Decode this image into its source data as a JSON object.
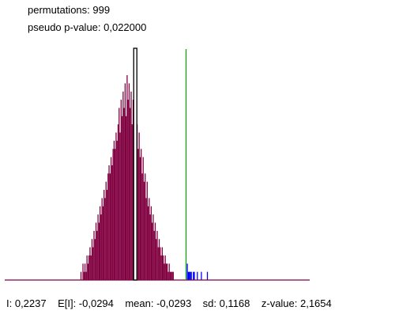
{
  "header": {
    "permutations_text": "permutations: 999",
    "pvalue_text": "pseudo p-value: 0,022000"
  },
  "footer": {
    "I_text": "I: 0,2237",
    "EI_text": "E[I]: -0,0294",
    "mean_text": "mean: -0,0293",
    "sd_text": "sd: 0,1168",
    "z_text": "z-value: 2,1654"
  },
  "colors": {
    "hist_fill": "#800040",
    "tail_fill": "#0000ff",
    "observed_line": "#00a000",
    "expected_line": "#000000",
    "baseline": "#800040"
  },
  "chart_data": {
    "type": "histogram",
    "title": "",
    "xlabel": "",
    "ylabel": "",
    "observed_I": 0.2237,
    "expected_I": -0.0294,
    "mean": -0.0293,
    "sd": 0.1168,
    "permutations": 999,
    "x_range": [
      -0.68,
      0.84
    ],
    "bin_width": 0.0044,
    "peak_count": 25,
    "tail_threshold": 0.2237,
    "bins": [
      {
        "x": -0.3,
        "count": 1
      },
      {
        "x": -0.295,
        "count": 0
      },
      {
        "x": -0.29,
        "count": 2
      },
      {
        "x": -0.285,
        "count": 1
      },
      {
        "x": -0.28,
        "count": 2
      },
      {
        "x": -0.275,
        "count": 1
      },
      {
        "x": -0.27,
        "count": 3
      },
      {
        "x": -0.265,
        "count": 2
      },
      {
        "x": -0.26,
        "count": 3
      },
      {
        "x": -0.255,
        "count": 4
      },
      {
        "x": -0.25,
        "count": 3
      },
      {
        "x": -0.245,
        "count": 5
      },
      {
        "x": -0.24,
        "count": 4
      },
      {
        "x": -0.235,
        "count": 6
      },
      {
        "x": -0.23,
        "count": 5
      },
      {
        "x": -0.225,
        "count": 7
      },
      {
        "x": -0.22,
        "count": 6
      },
      {
        "x": -0.215,
        "count": 8
      },
      {
        "x": -0.21,
        "count": 7
      },
      {
        "x": -0.205,
        "count": 9
      },
      {
        "x": -0.2,
        "count": 8
      },
      {
        "x": -0.195,
        "count": 10
      },
      {
        "x": -0.19,
        "count": 9
      },
      {
        "x": -0.185,
        "count": 11
      },
      {
        "x": -0.18,
        "count": 10
      },
      {
        "x": -0.175,
        "count": 12
      },
      {
        "x": -0.17,
        "count": 11
      },
      {
        "x": -0.165,
        "count": 13
      },
      {
        "x": -0.16,
        "count": 14
      },
      {
        "x": -0.155,
        "count": 13
      },
      {
        "x": -0.15,
        "count": 15
      },
      {
        "x": -0.145,
        "count": 14
      },
      {
        "x": -0.14,
        "count": 16
      },
      {
        "x": -0.135,
        "count": 17
      },
      {
        "x": -0.13,
        "count": 16
      },
      {
        "x": -0.125,
        "count": 18
      },
      {
        "x": -0.12,
        "count": 17
      },
      {
        "x": -0.115,
        "count": 19
      },
      {
        "x": -0.11,
        "count": 21
      },
      {
        "x": -0.105,
        "count": 18
      },
      {
        "x": -0.1,
        "count": 22
      },
      {
        "x": -0.095,
        "count": 20
      },
      {
        "x": -0.09,
        "count": 23
      },
      {
        "x": -0.085,
        "count": 21
      },
      {
        "x": -0.08,
        "count": 24
      },
      {
        "x": -0.075,
        "count": 20
      },
      {
        "x": -0.07,
        "count": 25
      },
      {
        "x": -0.065,
        "count": 22
      },
      {
        "x": -0.06,
        "count": 24
      },
      {
        "x": -0.055,
        "count": 21
      },
      {
        "x": -0.05,
        "count": 23
      },
      {
        "x": -0.045,
        "count": 19
      },
      {
        "x": -0.04,
        "count": 22
      },
      {
        "x": -0.035,
        "count": 18
      },
      {
        "x": -0.03,
        "count": 21
      },
      {
        "x": -0.025,
        "count": 17
      },
      {
        "x": -0.02,
        "count": 19
      },
      {
        "x": -0.015,
        "count": 16
      },
      {
        "x": -0.01,
        "count": 18
      },
      {
        "x": -0.005,
        "count": 15
      },
      {
        "x": 0.0,
        "count": 16
      },
      {
        "x": 0.005,
        "count": 13
      },
      {
        "x": 0.01,
        "count": 15
      },
      {
        "x": 0.015,
        "count": 12
      },
      {
        "x": 0.02,
        "count": 13
      },
      {
        "x": 0.025,
        "count": 10
      },
      {
        "x": 0.03,
        "count": 12
      },
      {
        "x": 0.035,
        "count": 9
      },
      {
        "x": 0.04,
        "count": 10
      },
      {
        "x": 0.045,
        "count": 8
      },
      {
        "x": 0.05,
        "count": 9
      },
      {
        "x": 0.055,
        "count": 7
      },
      {
        "x": 0.06,
        "count": 8
      },
      {
        "x": 0.065,
        "count": 6
      },
      {
        "x": 0.07,
        "count": 7
      },
      {
        "x": 0.075,
        "count": 5
      },
      {
        "x": 0.08,
        "count": 6
      },
      {
        "x": 0.085,
        "count": 4
      },
      {
        "x": 0.09,
        "count": 5
      },
      {
        "x": 0.095,
        "count": 4
      },
      {
        "x": 0.1,
        "count": 3
      },
      {
        "x": 0.105,
        "count": 4
      },
      {
        "x": 0.11,
        "count": 3
      },
      {
        "x": 0.115,
        "count": 2
      },
      {
        "x": 0.12,
        "count": 3
      },
      {
        "x": 0.125,
        "count": 2
      },
      {
        "x": 0.13,
        "count": 2
      },
      {
        "x": 0.135,
        "count": 1
      },
      {
        "x": 0.14,
        "count": 2
      },
      {
        "x": 0.145,
        "count": 1
      },
      {
        "x": 0.15,
        "count": 1
      },
      {
        "x": 0.155,
        "count": 1
      },
      {
        "x": 0.16,
        "count": 1
      },
      {
        "x": 0.23,
        "count": 2,
        "tail": true
      },
      {
        "x": 0.235,
        "count": 1,
        "tail": true
      },
      {
        "x": 0.24,
        "count": 1,
        "tail": true
      },
      {
        "x": 0.245,
        "count": 1,
        "tail": true
      },
      {
        "x": 0.25,
        "count": 1,
        "tail": true
      },
      {
        "x": 0.26,
        "count": 1,
        "tail": true
      },
      {
        "x": 0.265,
        "count": 1,
        "tail": true
      },
      {
        "x": 0.28,
        "count": 1,
        "tail": true
      },
      {
        "x": 0.3,
        "count": 1,
        "tail": true
      },
      {
        "x": 0.33,
        "count": 1,
        "tail": true
      }
    ]
  }
}
